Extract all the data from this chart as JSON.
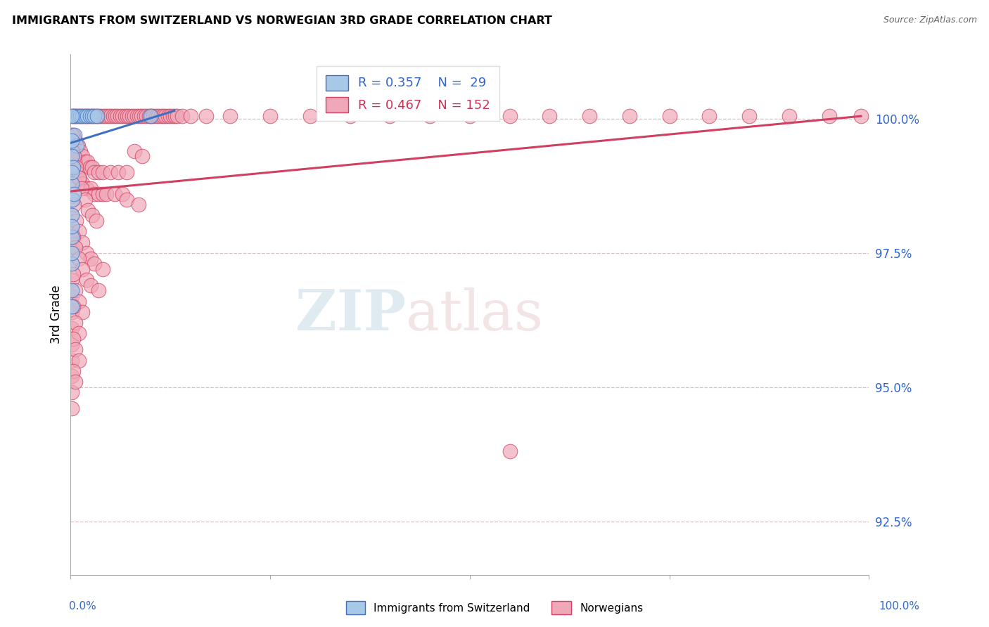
{
  "title": "IMMIGRANTS FROM SWITZERLAND VS NORWEGIAN 3RD GRADE CORRELATION CHART",
  "source": "Source: ZipAtlas.com",
  "ylabel": "3rd Grade",
  "yticks": [
    100.0,
    97.5,
    95.0,
    92.5
  ],
  "ytick_labels": [
    "100.0%",
    "97.5%",
    "95.0%",
    "92.5%"
  ],
  "ymin": 91.5,
  "ymax": 101.2,
  "xmin": 0.0,
  "xmax": 100.0,
  "blue_color": "#a8c8e8",
  "pink_color": "#f0a8b8",
  "trendline_blue": "#4070c0",
  "trendline_pink": "#d04060",
  "swiss_points": [
    [
      0.3,
      100.05
    ],
    [
      0.6,
      100.05
    ],
    [
      0.9,
      100.05
    ],
    [
      1.2,
      100.05
    ],
    [
      1.5,
      100.05
    ],
    [
      1.8,
      100.05
    ],
    [
      2.1,
      100.05
    ],
    [
      2.4,
      100.05
    ],
    [
      2.7,
      100.05
    ],
    [
      3.0,
      100.05
    ],
    [
      3.3,
      100.05
    ],
    [
      0.5,
      99.7
    ],
    [
      0.8,
      99.5
    ],
    [
      0.15,
      99.3
    ],
    [
      0.3,
      99.1
    ],
    [
      0.15,
      98.8
    ],
    [
      0.2,
      98.5
    ],
    [
      0.15,
      98.2
    ],
    [
      0.15,
      97.8
    ],
    [
      0.15,
      97.3
    ],
    [
      10.0,
      100.05
    ],
    [
      0.15,
      96.8
    ],
    [
      0.15,
      96.5
    ],
    [
      0.15,
      99.6
    ],
    [
      0.15,
      99.0
    ],
    [
      0.4,
      98.6
    ],
    [
      0.15,
      98.0
    ],
    [
      0.15,
      97.5
    ],
    [
      0.15,
      100.05
    ]
  ],
  "norwegian_points": [
    [
      0.2,
      100.05
    ],
    [
      0.5,
      100.05
    ],
    [
      0.8,
      100.05
    ],
    [
      1.1,
      100.05
    ],
    [
      1.4,
      100.05
    ],
    [
      1.7,
      100.05
    ],
    [
      2.0,
      100.05
    ],
    [
      2.3,
      100.05
    ],
    [
      2.6,
      100.05
    ],
    [
      2.9,
      100.05
    ],
    [
      3.2,
      100.05
    ],
    [
      3.5,
      100.05
    ],
    [
      3.8,
      100.05
    ],
    [
      4.1,
      100.05
    ],
    [
      4.4,
      100.05
    ],
    [
      4.7,
      100.05
    ],
    [
      5.0,
      100.05
    ],
    [
      5.3,
      100.05
    ],
    [
      5.6,
      100.05
    ],
    [
      5.9,
      100.05
    ],
    [
      6.2,
      100.05
    ],
    [
      6.5,
      100.05
    ],
    [
      6.8,
      100.05
    ],
    [
      7.1,
      100.05
    ],
    [
      7.4,
      100.05
    ],
    [
      7.7,
      100.05
    ],
    [
      8.0,
      100.05
    ],
    [
      8.3,
      100.05
    ],
    [
      8.6,
      100.05
    ],
    [
      8.9,
      100.05
    ],
    [
      9.2,
      100.05
    ],
    [
      9.5,
      100.05
    ],
    [
      9.8,
      100.05
    ],
    [
      10.1,
      100.05
    ],
    [
      10.4,
      100.05
    ],
    [
      10.7,
      100.05
    ],
    [
      11.0,
      100.05
    ],
    [
      11.3,
      100.05
    ],
    [
      11.6,
      100.05
    ],
    [
      11.9,
      100.05
    ],
    [
      12.2,
      100.05
    ],
    [
      12.5,
      100.05
    ],
    [
      12.8,
      100.05
    ],
    [
      13.1,
      100.05
    ],
    [
      13.4,
      100.05
    ],
    [
      14.0,
      100.05
    ],
    [
      15.0,
      100.05
    ],
    [
      17.0,
      100.05
    ],
    [
      20.0,
      100.05
    ],
    [
      25.0,
      100.05
    ],
    [
      30.0,
      100.05
    ],
    [
      35.0,
      100.05
    ],
    [
      40.0,
      100.05
    ],
    [
      45.0,
      100.05
    ],
    [
      50.0,
      100.05
    ],
    [
      55.0,
      100.05
    ],
    [
      60.0,
      100.05
    ],
    [
      65.0,
      100.05
    ],
    [
      70.0,
      100.05
    ],
    [
      75.0,
      100.05
    ],
    [
      80.0,
      100.05
    ],
    [
      85.0,
      100.05
    ],
    [
      90.0,
      100.05
    ],
    [
      95.0,
      100.05
    ],
    [
      99.0,
      100.05
    ],
    [
      0.3,
      99.7
    ],
    [
      0.6,
      99.6
    ],
    [
      0.9,
      99.5
    ],
    [
      1.2,
      99.4
    ],
    [
      1.5,
      99.3
    ],
    [
      1.8,
      99.2
    ],
    [
      2.1,
      99.2
    ],
    [
      2.4,
      99.1
    ],
    [
      2.7,
      99.1
    ],
    [
      3.0,
      99.0
    ],
    [
      3.5,
      99.0
    ],
    [
      4.0,
      99.0
    ],
    [
      5.0,
      99.0
    ],
    [
      6.0,
      99.0
    ],
    [
      7.0,
      99.0
    ],
    [
      0.2,
      99.4
    ],
    [
      0.5,
      99.2
    ],
    [
      0.8,
      99.0
    ],
    [
      1.1,
      98.9
    ],
    [
      1.5,
      98.8
    ],
    [
      2.0,
      98.7
    ],
    [
      2.5,
      98.7
    ],
    [
      3.0,
      98.6
    ],
    [
      3.5,
      98.6
    ],
    [
      4.0,
      98.6
    ],
    [
      4.5,
      98.6
    ],
    [
      5.5,
      98.6
    ],
    [
      6.5,
      98.6
    ],
    [
      0.15,
      99.7
    ],
    [
      0.15,
      99.4
    ],
    [
      0.15,
      99.1
    ],
    [
      0.15,
      98.8
    ],
    [
      0.15,
      98.5
    ],
    [
      0.15,
      98.2
    ],
    [
      0.15,
      97.9
    ],
    [
      0.15,
      97.6
    ],
    [
      0.15,
      97.3
    ],
    [
      0.15,
      97.0
    ],
    [
      0.15,
      96.7
    ],
    [
      0.15,
      96.4
    ],
    [
      0.15,
      96.1
    ],
    [
      0.15,
      95.8
    ],
    [
      0.15,
      95.5
    ],
    [
      0.15,
      95.2
    ],
    [
      0.15,
      94.9
    ],
    [
      0.15,
      94.6
    ],
    [
      0.4,
      99.3
    ],
    [
      0.7,
      99.1
    ],
    [
      1.0,
      98.9
    ],
    [
      1.4,
      98.7
    ],
    [
      1.8,
      98.5
    ],
    [
      2.2,
      98.3
    ],
    [
      2.7,
      98.2
    ],
    [
      3.2,
      98.1
    ],
    [
      0.4,
      98.4
    ],
    [
      0.7,
      98.1
    ],
    [
      1.0,
      97.9
    ],
    [
      1.5,
      97.7
    ],
    [
      2.0,
      97.5
    ],
    [
      2.5,
      97.4
    ],
    [
      3.0,
      97.3
    ],
    [
      4.0,
      97.2
    ],
    [
      0.3,
      97.8
    ],
    [
      0.6,
      97.6
    ],
    [
      1.0,
      97.4
    ],
    [
      1.5,
      97.2
    ],
    [
      2.0,
      97.0
    ],
    [
      2.5,
      96.9
    ],
    [
      3.5,
      96.8
    ],
    [
      0.3,
      97.1
    ],
    [
      0.6,
      96.8
    ],
    [
      1.0,
      96.6
    ],
    [
      1.5,
      96.4
    ],
    [
      0.3,
      96.5
    ],
    [
      0.6,
      96.2
    ],
    [
      1.0,
      96.0
    ],
    [
      0.3,
      95.9
    ],
    [
      0.6,
      95.7
    ],
    [
      1.0,
      95.5
    ],
    [
      0.3,
      95.3
    ],
    [
      0.6,
      95.1
    ],
    [
      8.0,
      99.4
    ],
    [
      9.0,
      99.3
    ],
    [
      7.0,
      98.5
    ],
    [
      8.5,
      98.4
    ],
    [
      55.0,
      93.8
    ]
  ],
  "blue_trendline_x": [
    0,
    13
  ],
  "blue_trendline_y": [
    99.55,
    100.15
  ],
  "pink_trendline_x": [
    0,
    99
  ],
  "pink_trendline_y": [
    98.65,
    100.05
  ]
}
